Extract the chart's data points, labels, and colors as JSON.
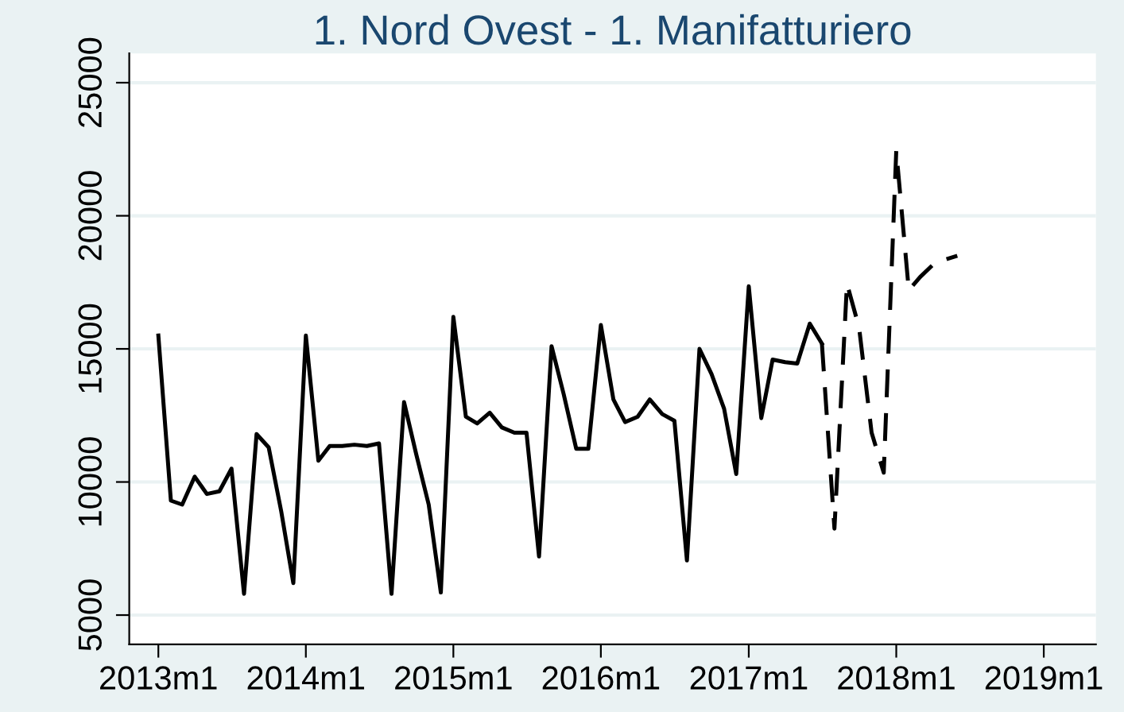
{
  "chart_data": {
    "type": "line",
    "title": "1. Nord Ovest - 1. Manifatturiero",
    "series": [
      {
        "color": "#000000",
        "line_style": "solid",
        "x": [
          "2013-01",
          "2013-02",
          "2013-03",
          "2013-04",
          "2013-05",
          "2013-06",
          "2013-07",
          "2013-08",
          "2013-09",
          "2013-10",
          "2013-11",
          "2013-12",
          "2014-01",
          "2014-02",
          "2014-03",
          "2014-04",
          "2014-05",
          "2014-06",
          "2014-07",
          "2014-08",
          "2014-09",
          "2014-10",
          "2014-11",
          "2014-12",
          "2015-01",
          "2015-02",
          "2015-03",
          "2015-04",
          "2015-05",
          "2015-06",
          "2015-07",
          "2015-08",
          "2015-09",
          "2015-10",
          "2015-11",
          "2015-12",
          "2016-01",
          "2016-02",
          "2016-03",
          "2016-04",
          "2016-05",
          "2016-06",
          "2016-07",
          "2016-08",
          "2016-09",
          "2016-10",
          "2016-11",
          "2016-12",
          "2017-01",
          "2017-02",
          "2017-03",
          "2017-04",
          "2017-05",
          "2017-06",
          "2017-07"
        ],
        "values": [
          15500,
          9300,
          9150,
          10200,
          9550,
          9650,
          10500,
          5800,
          11800,
          11300,
          8900,
          6200,
          15500,
          10800,
          11350,
          11350,
          11400,
          11350,
          11450,
          5800,
          13000,
          11050,
          9150,
          5850,
          16200,
          12450,
          12200,
          12600,
          12050,
          11850,
          11850,
          7200,
          15100,
          13300,
          11250,
          11250,
          15900,
          13100,
          12250,
          12450,
          13100,
          12550,
          12300,
          7050,
          15000,
          14050,
          12750,
          10300,
          17350,
          12400,
          14600,
          14500,
          14450,
          15950,
          15200
        ]
      },
      {
        "color": "#000000",
        "line_style": "dashed",
        "x": [
          "2017-07",
          "2017-08",
          "2017-09",
          "2017-10",
          "2017-11",
          "2017-12",
          "2018-01",
          "2018-02",
          "2018-03",
          "2018-04",
          "2018-05",
          "2018-06"
        ],
        "values": [
          15200,
          8250,
          17450,
          15800,
          11850,
          10350,
          22450,
          17200,
          17700,
          18150,
          18350,
          18500
        ]
      }
    ],
    "xlim": [
      "2012-10-21",
      "2019-05-10"
    ],
    "xticks": [
      {
        "value": "2013-01",
        "label": "2013m1"
      },
      {
        "value": "2014-01",
        "label": "2014m1"
      },
      {
        "value": "2015-01",
        "label": "2015m1"
      },
      {
        "value": "2016-01",
        "label": "2016m1"
      },
      {
        "value": "2017-01",
        "label": "2017m1"
      },
      {
        "value": "2018-01",
        "label": "2018m1"
      },
      {
        "value": "2019-01",
        "label": "2019m1"
      }
    ],
    "ylim": [
      3900,
      26100
    ],
    "yticks": [
      5000,
      10000,
      15000,
      20000,
      25000
    ],
    "grid": "y"
  }
}
